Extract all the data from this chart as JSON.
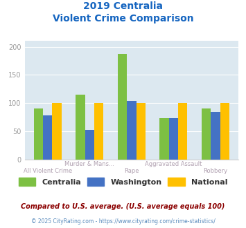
{
  "title_line1": "2019 Centralia",
  "title_line2": "Violent Crime Comparison",
  "categories_top": [
    "Murder & Mans...",
    "Aggravated Assault"
  ],
  "categories_bottom": [
    "All Violent Crime",
    "Rape",
    "Robbery"
  ],
  "categories": [
    "All Violent Crime",
    "Murder & Mans...",
    "Rape",
    "Aggravated Assault",
    "Robbery"
  ],
  "series": {
    "Centralia": [
      91,
      115,
      187,
      73,
      91
    ],
    "Washington": [
      78,
      53,
      104,
      73,
      84
    ],
    "National": [
      100,
      100,
      100,
      100,
      100
    ]
  },
  "colors": {
    "Centralia": "#7dc043",
    "Washington": "#4472c4",
    "National": "#ffc000"
  },
  "ylim": [
    0,
    210
  ],
  "yticks": [
    0,
    50,
    100,
    150,
    200
  ],
  "plot_bg": "#dce8f0",
  "title_color": "#1565c0",
  "note_text": "Compared to U.S. average. (U.S. average equals 100)",
  "footer_text": "© 2025 CityRating.com - https://www.cityrating.com/crime-statistics/",
  "note_color": "#8b0000",
  "footer_color": "#5588bb",
  "bar_width": 0.22,
  "grid_color": "#ffffff"
}
